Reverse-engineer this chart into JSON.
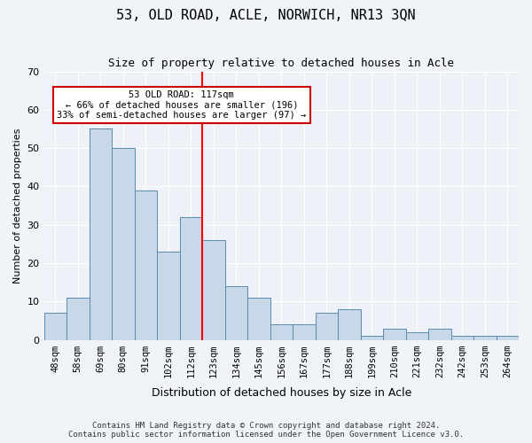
{
  "title": "53, OLD ROAD, ACLE, NORWICH, NR13 3QN",
  "subtitle": "Size of property relative to detached houses in Acle",
  "xlabel": "Distribution of detached houses by size in Acle",
  "ylabel": "Number of detached properties",
  "categories": [
    "48sqm",
    "58sqm",
    "69sqm",
    "80sqm",
    "91sqm",
    "102sqm",
    "112sqm",
    "123sqm",
    "134sqm",
    "145sqm",
    "156sqm",
    "167sqm",
    "177sqm",
    "188sqm",
    "199sqm",
    "210sqm",
    "221sqm",
    "232sqm",
    "242sqm",
    "253sqm",
    "264sqm"
  ],
  "values": [
    7,
    11,
    55,
    50,
    39,
    23,
    32,
    26,
    14,
    11,
    4,
    4,
    7,
    8,
    1,
    3,
    2,
    3,
    1,
    1,
    1
  ],
  "bar_color": "#c8d8e8",
  "bar_edge_color": "#5a8ab0",
  "reference_line_x": 6.5,
  "reference_line_label": "53 OLD ROAD: 117sqm",
  "annotation_line1": "← 66% of detached houses are smaller (196)",
  "annotation_line2": "33% of semi-detached houses are larger (97) →",
  "ylim": [
    0,
    70
  ],
  "yticks": [
    0,
    10,
    20,
    30,
    40,
    50,
    60,
    70
  ],
  "bg_color": "#f0f4f8",
  "plot_bg_color": "#eef2f8",
  "grid_color": "#ffffff",
  "annotation_box_color": "#ffffff",
  "annotation_box_edge": "#cc0000",
  "footer1": "Contains HM Land Registry data © Crown copyright and database right 2024.",
  "footer2": "Contains public sector information licensed under the Open Government Licence v3.0."
}
